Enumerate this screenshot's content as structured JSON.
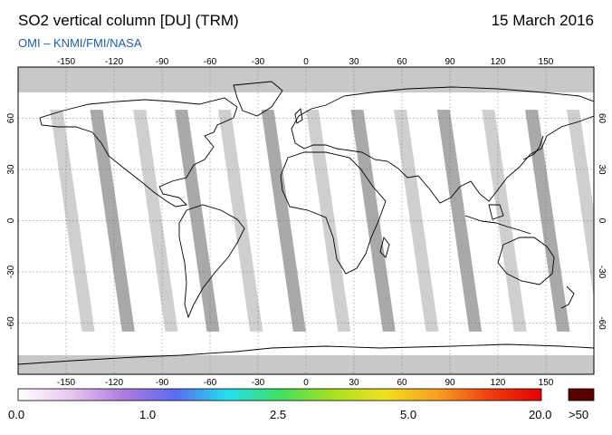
{
  "header": {
    "title": "SO2 vertical column [DU] (TRM)",
    "date": "15 March 2016",
    "credit": "OMI  –  KNMI/FMI/NASA"
  },
  "map": {
    "projection": "equirectangular",
    "lon_range": [
      -180,
      180
    ],
    "lat_range": [
      -90,
      90
    ],
    "lon_ticks": [
      "-150",
      "-120",
      "-90",
      "-60",
      "-30",
      "0",
      "30",
      "60",
      "90",
      "120",
      "150"
    ],
    "lat_ticks": [
      "60",
      "30",
      "0",
      "-30",
      "-60"
    ],
    "no_data_color": "#c8c8c8",
    "swath_gap_color": "#a9a9a9",
    "ocean_color": "#ffffff",
    "coastline_color": "#000000"
  },
  "colorbar": {
    "labels": [
      "0.0",
      "1.0",
      "2.5",
      "5.0",
      "20.0"
    ],
    "overflow_label": ">50",
    "overflow_color": "#5a0000",
    "stops": [
      "#ffffff",
      "#e6c8ee",
      "#b07ce0",
      "#5a6cf0",
      "#22e0f0",
      "#40e060",
      "#a8e020",
      "#f0e020",
      "#f8a020",
      "#f04010",
      "#e00000"
    ]
  }
}
